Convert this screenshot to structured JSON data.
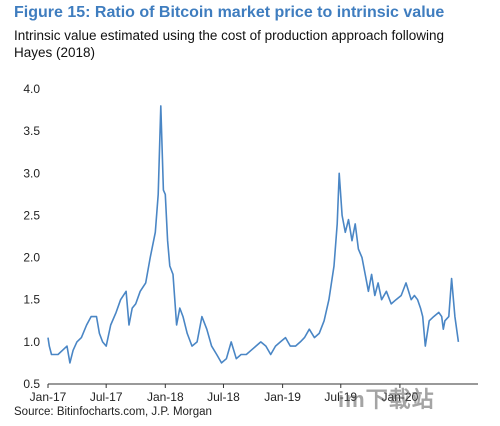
{
  "header": {
    "title": "Figure 15: Ratio of Bitcoin market price to intrinsic value",
    "subtitle": "Intrinsic value estimated using the cost of production approach following Hayes (2018)"
  },
  "footer": {
    "source": "Source: Bitinfocharts.com, J.P. Morgan",
    "watermark": "im下载站"
  },
  "colors": {
    "title": "#3f7dbf",
    "series": "#4a86c5",
    "axis": "#333333"
  },
  "chart_data": {
    "type": "line",
    "title": "Figure 15: Ratio of Bitcoin market price to intrinsic value",
    "xlabel": "",
    "ylabel": "",
    "ylim": [
      0.5,
      4.0
    ],
    "xlim": [
      "2017-01-01",
      "2020-08-31"
    ],
    "yticks": [
      "0.5",
      "1.0",
      "1.5",
      "2.0",
      "2.5",
      "3.0",
      "3.5",
      "4.0"
    ],
    "xticks": [
      {
        "label": "Jan-17",
        "date": "2017-01-01"
      },
      {
        "label": "Jul-17",
        "date": "2017-07-01"
      },
      {
        "label": "Jan-18",
        "date": "2018-01-01"
      },
      {
        "label": "Jul-18",
        "date": "2018-07-01"
      },
      {
        "label": "Jan-19",
        "date": "2019-01-01"
      },
      {
        "label": "Jul-19",
        "date": "2019-07-01"
      },
      {
        "label": "Jan-20",
        "date": "2020-01-01"
      }
    ],
    "grid": false,
    "legend": "none",
    "series": [
      {
        "x": [
          "2017-01-01",
          "2017-01-05",
          "2017-01-12",
          "2017-01-20",
          "2017-02-01",
          "2017-02-15",
          "2017-03-01",
          "2017-03-10",
          "2017-03-20",
          "2017-04-01",
          "2017-04-15",
          "2017-05-01",
          "2017-05-15",
          "2017-06-01",
          "2017-06-10",
          "2017-06-20",
          "2017-07-01",
          "2017-07-15",
          "2017-08-01",
          "2017-08-15",
          "2017-09-01",
          "2017-09-10",
          "2017-09-20",
          "2017-10-01",
          "2017-10-15",
          "2017-11-01",
          "2017-11-15",
          "2017-12-01",
          "2017-12-10",
          "2017-12-15",
          "2017-12-18",
          "2017-12-22",
          "2017-12-26",
          "2018-01-01",
          "2018-01-08",
          "2018-01-15",
          "2018-01-25",
          "2018-02-05",
          "2018-02-15",
          "2018-02-25",
          "2018-03-10",
          "2018-03-25",
          "2018-04-10",
          "2018-04-25",
          "2018-05-10",
          "2018-05-25",
          "2018-06-10",
          "2018-06-25",
          "2018-07-10",
          "2018-07-25",
          "2018-08-10",
          "2018-08-25",
          "2018-09-10",
          "2018-09-25",
          "2018-10-10",
          "2018-10-25",
          "2018-11-10",
          "2018-11-25",
          "2018-12-10",
          "2018-12-25",
          "2019-01-10",
          "2019-01-25",
          "2019-02-10",
          "2019-02-25",
          "2019-03-10",
          "2019-03-25",
          "2019-04-10",
          "2019-04-25",
          "2019-05-10",
          "2019-05-25",
          "2019-06-10",
          "2019-06-20",
          "2019-06-26",
          "2019-07-05",
          "2019-07-15",
          "2019-07-25",
          "2019-08-05",
          "2019-08-15",
          "2019-08-25",
          "2019-09-05",
          "2019-09-15",
          "2019-09-25",
          "2019-10-05",
          "2019-10-15",
          "2019-10-25",
          "2019-11-05",
          "2019-11-20",
          "2019-12-05",
          "2019-12-20",
          "2020-01-05",
          "2020-01-20",
          "2020-02-05",
          "2020-02-15",
          "2020-02-25",
          "2020-03-05",
          "2020-03-12",
          "2020-03-20",
          "2020-04-01",
          "2020-04-15",
          "2020-05-01",
          "2020-05-10",
          "2020-05-15",
          "2020-05-20",
          "2020-06-01",
          "2020-06-10",
          "2020-06-20",
          "2020-07-01"
        ],
        "values": [
          1.05,
          0.95,
          0.85,
          0.85,
          0.85,
          0.9,
          0.95,
          0.75,
          0.9,
          1.0,
          1.05,
          1.2,
          1.3,
          1.3,
          1.1,
          1.0,
          0.95,
          1.2,
          1.35,
          1.5,
          1.6,
          1.2,
          1.4,
          1.45,
          1.6,
          1.7,
          2.0,
          2.3,
          2.75,
          3.4,
          3.8,
          3.3,
          2.8,
          2.75,
          2.2,
          1.9,
          1.8,
          1.2,
          1.4,
          1.3,
          1.1,
          0.95,
          1.0,
          1.3,
          1.15,
          0.95,
          0.85,
          0.75,
          0.8,
          1.0,
          0.8,
          0.85,
          0.85,
          0.9,
          0.95,
          1.0,
          0.95,
          0.85,
          0.95,
          1.0,
          1.05,
          0.95,
          0.95,
          1.0,
          1.05,
          1.15,
          1.05,
          1.1,
          1.25,
          1.5,
          1.9,
          2.4,
          3.0,
          2.5,
          2.3,
          2.45,
          2.2,
          2.4,
          2.1,
          2.0,
          1.8,
          1.6,
          1.8,
          1.55,
          1.7,
          1.5,
          1.6,
          1.45,
          1.5,
          1.55,
          1.7,
          1.5,
          1.55,
          1.5,
          1.4,
          1.3,
          0.95,
          1.25,
          1.3,
          1.35,
          1.3,
          1.15,
          1.25,
          1.3,
          1.75,
          1.3,
          1.0
        ]
      }
    ]
  }
}
